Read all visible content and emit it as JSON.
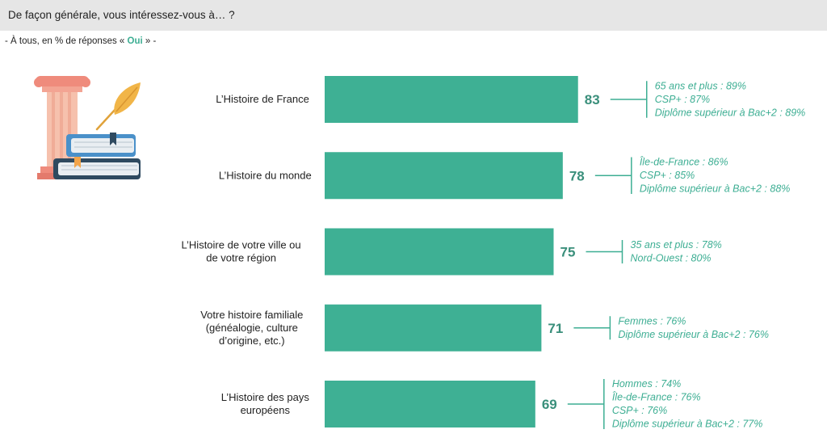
{
  "header": {
    "question": "De façon générale, vous intéressez-vous à… ?",
    "subtitle_prefix": "- À tous, en % de réponses « ",
    "subtitle_highlight": "Oui",
    "subtitle_suffix": " » -"
  },
  "colors": {
    "bar": "#3eb094",
    "value": "#3a8f7b",
    "note": "#3dae93",
    "header_bg": "#e6e6e6"
  },
  "illustration": {
    "icon": "history-books-column-quill-icon"
  },
  "chart_data": {
    "type": "bar",
    "orientation": "horizontal",
    "categories": [
      [
        "L’Histoire de France"
      ],
      [
        "L’Histoire du monde"
      ],
      [
        "L’Histoire de votre ville ou",
        "de votre région"
      ],
      [
        "Votre histoire familiale",
        "(généalogie, culture",
        "d’origine, etc.)"
      ],
      [
        "L’Histoire des pays",
        "européens"
      ]
    ],
    "values": [
      83,
      78,
      75,
      71,
      69
    ],
    "value_labels": [
      "83",
      "78",
      "75",
      "71",
      "69"
    ],
    "annotations": [
      [
        "65 ans et plus : 89%",
        "CSP+ : 87%",
        "Diplôme supérieur à Bac+2 : 89%"
      ],
      [
        "Île-de-France : 86%",
        "CSP+ : 85%",
        "Diplôme supérieur à Bac+2 : 88%"
      ],
      [
        "35 ans et plus : 78%",
        "Nord-Ouest : 80%"
      ],
      [
        "Femmes : 76%",
        "Diplôme supérieur à Bac+2 : 76%"
      ],
      [
        "Hommes : 74%",
        "Île-de-France : 76%",
        "CSP+ : 76%",
        "Diplôme supérieur à Bac+2 : 77%"
      ]
    ],
    "xlim": [
      0,
      100
    ],
    "unit": "%",
    "grid": false,
    "legend": "none"
  }
}
